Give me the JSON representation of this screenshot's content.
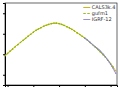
{
  "chart_data": {
    "type": "line",
    "series": [
      {
        "name": "CALS3k.4",
        "color": "#ccaa00",
        "line_style": "solid",
        "marker": "o",
        "x": [
          1590,
          1600,
          1610,
          1620,
          1630,
          1640,
          1650,
          1660,
          1670,
          1680,
          1690,
          1700,
          1710,
          1720,
          1730,
          1740,
          1750,
          1760,
          1770,
          1780,
          1790,
          1800,
          1810,
          1820,
          1830,
          1840,
          1850,
          1860,
          1870,
          1880,
          1890,
          1900,
          1910,
          1920,
          1930,
          1940,
          1950,
          1960,
          1970,
          1980,
          1990,
          2000,
          2010,
          2020
        ],
        "values": [
          0.595,
          0.605,
          0.617,
          0.627,
          0.638,
          0.648,
          0.658,
          0.668,
          0.678,
          0.689,
          0.698,
          0.708,
          0.717,
          0.724,
          0.73,
          0.737,
          0.742,
          0.746,
          0.75,
          0.752,
          0.752,
          0.75,
          0.746,
          0.741,
          0.735,
          0.729,
          0.722,
          0.714,
          0.705,
          0.697,
          0.688,
          0.679,
          0.669,
          0.658,
          0.647,
          0.636,
          0.624,
          0.612,
          0.599,
          0.586,
          0.571,
          0.555,
          0.538,
          0.519
        ]
      },
      {
        "name": "gufm1",
        "color": "#88bb00",
        "line_style": "dashed",
        "marker": "o",
        "x": [
          1590,
          1600,
          1610,
          1620,
          1630,
          1640,
          1650,
          1660,
          1670,
          1680,
          1690,
          1700,
          1710,
          1720,
          1730,
          1740,
          1750,
          1760,
          1770,
          1780,
          1790,
          1800,
          1810,
          1820,
          1830,
          1840,
          1850,
          1860,
          1870,
          1880,
          1890,
          1900,
          1910,
          1920,
          1930,
          1940,
          1950,
          1960,
          1970,
          1980,
          1990,
          2000,
          2010
        ],
        "values": [
          0.592,
          0.602,
          0.614,
          0.625,
          0.636,
          0.646,
          0.657,
          0.667,
          0.677,
          0.688,
          0.697,
          0.707,
          0.716,
          0.723,
          0.729,
          0.736,
          0.741,
          0.745,
          0.749,
          0.751,
          0.751,
          0.749,
          0.745,
          0.74,
          0.734,
          0.728,
          0.721,
          0.713,
          0.704,
          0.696,
          0.687,
          0.678,
          0.668,
          0.657,
          0.646,
          0.635,
          0.623,
          0.611,
          0.598,
          0.585,
          0.57,
          0.554,
          0.537
        ]
      },
      {
        "name": "IGRF-12",
        "color": "#8888cc",
        "line_style": "solid",
        "marker": "o",
        "x": [
          1900,
          1905,
          1910,
          1915,
          1920,
          1925,
          1930,
          1935,
          1940,
          1945,
          1950,
          1955,
          1960,
          1965,
          1970,
          1975,
          1980,
          1985,
          1990,
          1995,
          2000,
          2005,
          2010,
          2015,
          2020
        ],
        "values": [
          0.678,
          0.674,
          0.669,
          0.664,
          0.659,
          0.653,
          0.648,
          0.642,
          0.637,
          0.632,
          0.628,
          0.622,
          0.616,
          0.61,
          0.603,
          0.595,
          0.587,
          0.579,
          0.57,
          0.561,
          0.551,
          0.541,
          0.53,
          0.519,
          0.507
        ]
      }
    ],
    "xlim": [
      1590,
      2025
    ],
    "ylim": [
      0.45,
      0.85
    ],
    "xticks": [
      1600,
      1700,
      1800,
      1900,
      2000
    ],
    "yticks": [
      0.5,
      0.6,
      0.7,
      0.8
    ],
    "tick_labels": false,
    "grid": false,
    "legend": "upper right"
  }
}
